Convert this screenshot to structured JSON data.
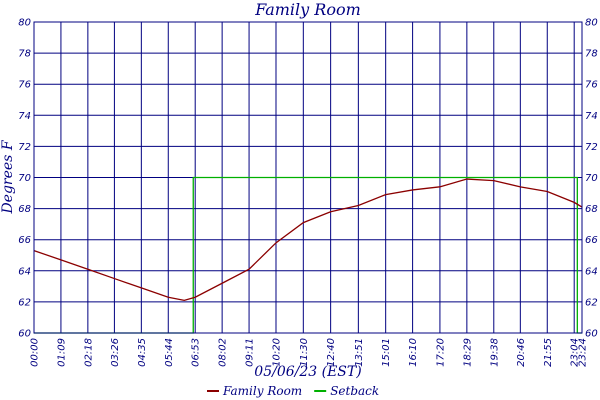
{
  "chart_data": {
    "type": "line",
    "title": "Family Room",
    "xlabel": "05/06/23 (EST)",
    "ylabel": "Degrees F",
    "xlim": [
      "00:00",
      "23:24"
    ],
    "ylim": [
      60,
      80
    ],
    "y_ticks": [
      60,
      62,
      64,
      66,
      68,
      70,
      72,
      74,
      76,
      78,
      80
    ],
    "x_ticks": [
      "00:00",
      "01:09",
      "02:18",
      "03:26",
      "04:35",
      "05:44",
      "06:53",
      "08:02",
      "09:11",
      "10:20",
      "11:30",
      "12:40",
      "13:51",
      "15:01",
      "16:10",
      "17:20",
      "18:29",
      "19:38",
      "20:46",
      "21:55",
      "23:04",
      "23:24"
    ],
    "grid": true,
    "legend_position": "bottom-center",
    "series": [
      {
        "name": "Family Room",
        "color": "#8b0000",
        "points": [
          [
            "00:00",
            65.3
          ],
          [
            "01:09",
            64.7
          ],
          [
            "02:18",
            64.1
          ],
          [
            "03:26",
            63.5
          ],
          [
            "04:35",
            62.9
          ],
          [
            "05:44",
            62.3
          ],
          [
            "06:25",
            62.1
          ],
          [
            "06:53",
            62.3
          ],
          [
            "08:02",
            63.2
          ],
          [
            "09:11",
            64.1
          ],
          [
            "10:20",
            65.8
          ],
          [
            "11:30",
            67.1
          ],
          [
            "12:40",
            67.8
          ],
          [
            "13:51",
            68.2
          ],
          [
            "15:01",
            68.9
          ],
          [
            "16:10",
            69.2
          ],
          [
            "17:20",
            69.4
          ],
          [
            "18:29",
            69.9
          ],
          [
            "19:38",
            69.8
          ],
          [
            "20:46",
            69.4
          ],
          [
            "21:55",
            69.1
          ],
          [
            "23:04",
            68.4
          ],
          [
            "23:24",
            68.1
          ]
        ]
      },
      {
        "name": "Setback",
        "color": "#00b000",
        "points": [
          [
            "00:00",
            60.0
          ],
          [
            "06:48",
            60.0
          ],
          [
            "06:48",
            70.0
          ],
          [
            "23:12",
            70.0
          ],
          [
            "23:12",
            60.0
          ],
          [
            "23:24",
            60.0
          ]
        ]
      }
    ]
  }
}
